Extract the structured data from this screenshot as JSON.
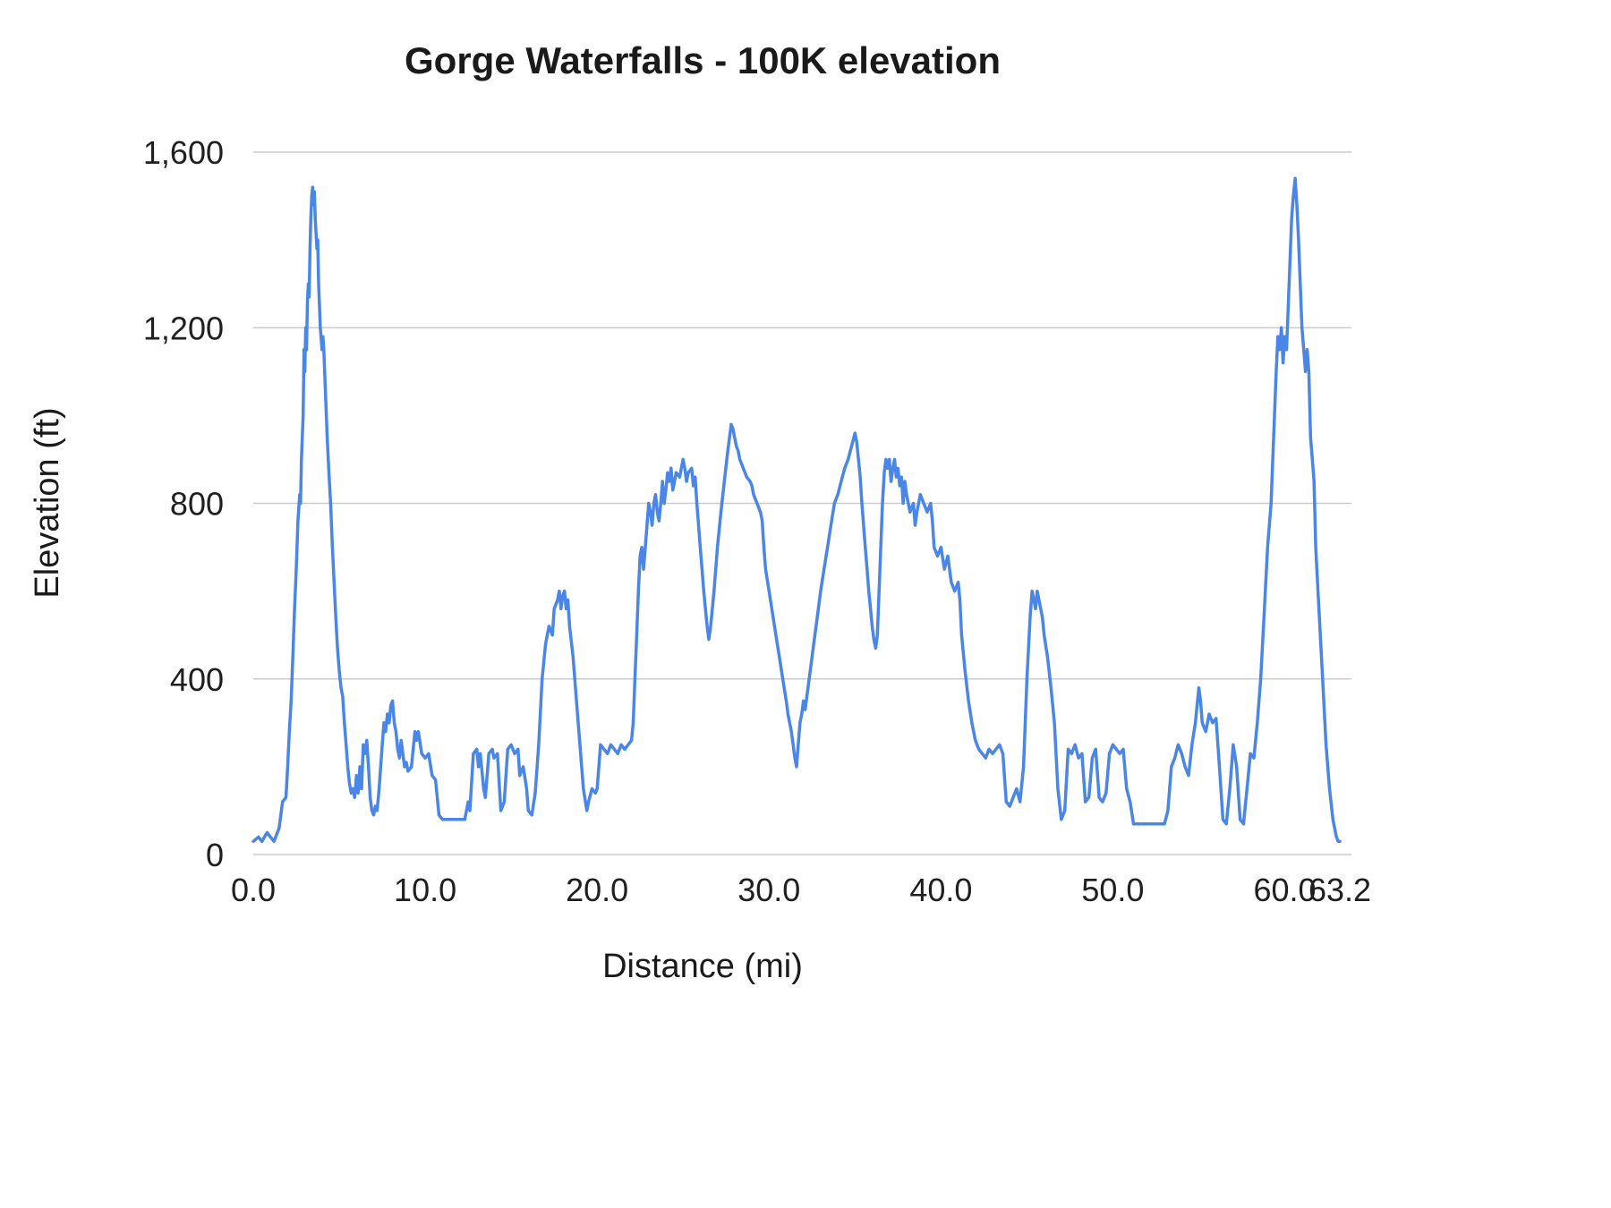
{
  "chart_data": {
    "type": "line",
    "title": "Gorge Waterfalls - 100K elevation",
    "xlabel": "Distance (mi)",
    "ylabel": "Elevation (ft)",
    "xlim": [
      0,
      63.2
    ],
    "ylim": [
      0,
      1600
    ],
    "grid": "horizontal",
    "legend": "none",
    "line_color": "#4a86e8",
    "grid_color": "#cccccc",
    "x_ticks": [
      {
        "v": 0.0,
        "label": "0.0"
      },
      {
        "v": 10.0,
        "label": "10.0"
      },
      {
        "v": 20.0,
        "label": "20.0"
      },
      {
        "v": 30.0,
        "label": "30.0"
      },
      {
        "v": 40.0,
        "label": "40.0"
      },
      {
        "v": 50.0,
        "label": "50.0"
      },
      {
        "v": 60.0,
        "label": "60.0"
      },
      {
        "v": 63.2,
        "label": "63.2"
      }
    ],
    "y_ticks": [
      {
        "v": 0,
        "label": "0"
      },
      {
        "v": 400,
        "label": "400"
      },
      {
        "v": 800,
        "label": "800"
      },
      {
        "v": 1200,
        "label": "1,200"
      },
      {
        "v": 1600,
        "label": "1,600"
      }
    ],
    "points": [
      [
        0.0,
        30
      ],
      [
        0.3,
        40
      ],
      [
        0.5,
        30
      ],
      [
        0.8,
        50
      ],
      [
        1.0,
        40
      ],
      [
        1.2,
        30
      ],
      [
        1.5,
        60
      ],
      [
        1.7,
        120
      ],
      [
        1.9,
        130
      ],
      [
        2.0,
        200
      ],
      [
        2.1,
        280
      ],
      [
        2.2,
        350
      ],
      [
        2.3,
        450
      ],
      [
        2.4,
        560
      ],
      [
        2.5,
        650
      ],
      [
        2.6,
        760
      ],
      [
        2.7,
        820
      ],
      [
        2.75,
        800
      ],
      [
        2.8,
        900
      ],
      [
        2.9,
        1000
      ],
      [
        2.95,
        1150
      ],
      [
        3.0,
        1100
      ],
      [
        3.05,
        1200
      ],
      [
        3.1,
        1150
      ],
      [
        3.15,
        1260
      ],
      [
        3.2,
        1300
      ],
      [
        3.25,
        1270
      ],
      [
        3.3,
        1380
      ],
      [
        3.35,
        1450
      ],
      [
        3.4,
        1500
      ],
      [
        3.45,
        1520
      ],
      [
        3.5,
        1480
      ],
      [
        3.55,
        1510
      ],
      [
        3.6,
        1450
      ],
      [
        3.7,
        1380
      ],
      [
        3.75,
        1400
      ],
      [
        3.8,
        1300
      ],
      [
        3.9,
        1200
      ],
      [
        4.0,
        1150
      ],
      [
        4.05,
        1180
      ],
      [
        4.1,
        1150
      ],
      [
        4.2,
        1050
      ],
      [
        4.3,
        950
      ],
      [
        4.4,
        870
      ],
      [
        4.5,
        800
      ],
      [
        4.6,
        700
      ],
      [
        4.7,
        620
      ],
      [
        4.8,
        540
      ],
      [
        4.9,
        470
      ],
      [
        5.0,
        420
      ],
      [
        5.1,
        380
      ],
      [
        5.2,
        360
      ],
      [
        5.3,
        300
      ],
      [
        5.4,
        250
      ],
      [
        5.5,
        200
      ],
      [
        5.6,
        160
      ],
      [
        5.7,
        140
      ],
      [
        5.8,
        150
      ],
      [
        5.9,
        130
      ],
      [
        6.0,
        180
      ],
      [
        6.1,
        140
      ],
      [
        6.2,
        200
      ],
      [
        6.3,
        150
      ],
      [
        6.4,
        250
      ],
      [
        6.5,
        230
      ],
      [
        6.6,
        260
      ],
      [
        6.7,
        200
      ],
      [
        6.8,
        130
      ],
      [
        6.9,
        100
      ],
      [
        7.0,
        90
      ],
      [
        7.1,
        110
      ],
      [
        7.2,
        100
      ],
      [
        7.3,
        140
      ],
      [
        7.5,
        250
      ],
      [
        7.6,
        300
      ],
      [
        7.7,
        280
      ],
      [
        7.8,
        320
      ],
      [
        7.9,
        300
      ],
      [
        8.0,
        340
      ],
      [
        8.1,
        350
      ],
      [
        8.2,
        300
      ],
      [
        8.3,
        280
      ],
      [
        8.4,
        240
      ],
      [
        8.5,
        220
      ],
      [
        8.6,
        260
      ],
      [
        8.7,
        230
      ],
      [
        8.8,
        200
      ],
      [
        8.9,
        210
      ],
      [
        9.0,
        190
      ],
      [
        9.2,
        200
      ],
      [
        9.4,
        280
      ],
      [
        9.5,
        260
      ],
      [
        9.6,
        280
      ],
      [
        9.8,
        230
      ],
      [
        10.0,
        220
      ],
      [
        10.2,
        230
      ],
      [
        10.4,
        180
      ],
      [
        10.6,
        170
      ],
      [
        10.8,
        90
      ],
      [
        11.0,
        80
      ],
      [
        11.5,
        80
      ],
      [
        12.0,
        80
      ],
      [
        12.3,
        80
      ],
      [
        12.5,
        120
      ],
      [
        12.6,
        100
      ],
      [
        12.8,
        230
      ],
      [
        13.0,
        240
      ],
      [
        13.1,
        200
      ],
      [
        13.2,
        230
      ],
      [
        13.4,
        150
      ],
      [
        13.5,
        130
      ],
      [
        13.7,
        230
      ],
      [
        13.9,
        240
      ],
      [
        14.0,
        220
      ],
      [
        14.2,
        230
      ],
      [
        14.4,
        100
      ],
      [
        14.6,
        120
      ],
      [
        14.8,
        240
      ],
      [
        15.0,
        250
      ],
      [
        15.2,
        230
      ],
      [
        15.4,
        240
      ],
      [
        15.5,
        180
      ],
      [
        15.7,
        200
      ],
      [
        15.9,
        150
      ],
      [
        16.0,
        100
      ],
      [
        16.2,
        90
      ],
      [
        16.4,
        140
      ],
      [
        16.6,
        250
      ],
      [
        16.8,
        400
      ],
      [
        17.0,
        480
      ],
      [
        17.2,
        520
      ],
      [
        17.4,
        500
      ],
      [
        17.5,
        560
      ],
      [
        17.7,
        580
      ],
      [
        17.8,
        600
      ],
      [
        17.9,
        560
      ],
      [
        18.0,
        590
      ],
      [
        18.1,
        600
      ],
      [
        18.2,
        560
      ],
      [
        18.3,
        580
      ],
      [
        18.4,
        520
      ],
      [
        18.6,
        450
      ],
      [
        18.8,
        350
      ],
      [
        19.0,
        250
      ],
      [
        19.2,
        150
      ],
      [
        19.4,
        100
      ],
      [
        19.5,
        120
      ],
      [
        19.7,
        150
      ],
      [
        19.9,
        140
      ],
      [
        20.0,
        150
      ],
      [
        20.2,
        250
      ],
      [
        20.4,
        240
      ],
      [
        20.6,
        230
      ],
      [
        20.8,
        250
      ],
      [
        21.0,
        240
      ],
      [
        21.2,
        230
      ],
      [
        21.4,
        250
      ],
      [
        21.6,
        240
      ],
      [
        21.8,
        250
      ],
      [
        22.0,
        260
      ],
      [
        22.1,
        300
      ],
      [
        22.2,
        400
      ],
      [
        22.3,
        500
      ],
      [
        22.4,
        600
      ],
      [
        22.5,
        680
      ],
      [
        22.6,
        700
      ],
      [
        22.7,
        650
      ],
      [
        22.8,
        700
      ],
      [
        22.9,
        750
      ],
      [
        23.0,
        800
      ],
      [
        23.1,
        780
      ],
      [
        23.2,
        750
      ],
      [
        23.3,
        800
      ],
      [
        23.4,
        820
      ],
      [
        23.5,
        780
      ],
      [
        23.6,
        760
      ],
      [
        23.7,
        800
      ],
      [
        23.8,
        850
      ],
      [
        23.9,
        800
      ],
      [
        24.0,
        830
      ],
      [
        24.1,
        870
      ],
      [
        24.2,
        850
      ],
      [
        24.3,
        880
      ],
      [
        24.4,
        830
      ],
      [
        24.5,
        850
      ],
      [
        24.6,
        870
      ],
      [
        24.8,
        860
      ],
      [
        25.0,
        900
      ],
      [
        25.1,
        880
      ],
      [
        25.2,
        850
      ],
      [
        25.3,
        870
      ],
      [
        25.5,
        880
      ],
      [
        25.6,
        840
      ],
      [
        25.7,
        860
      ],
      [
        25.8,
        800
      ],
      [
        25.9,
        750
      ],
      [
        26.0,
        700
      ],
      [
        26.1,
        650
      ],
      [
        26.2,
        600
      ],
      [
        26.3,
        560
      ],
      [
        26.4,
        520
      ],
      [
        26.5,
        490
      ],
      [
        26.6,
        520
      ],
      [
        26.7,
        560
      ],
      [
        26.8,
        600
      ],
      [
        26.9,
        650
      ],
      [
        27.0,
        700
      ],
      [
        27.2,
        780
      ],
      [
        27.4,
        850
      ],
      [
        27.6,
        920
      ],
      [
        27.8,
        980
      ],
      [
        27.9,
        970
      ],
      [
        28.0,
        950
      ],
      [
        28.1,
        930
      ],
      [
        28.2,
        920
      ],
      [
        28.3,
        900
      ],
      [
        28.5,
        880
      ],
      [
        28.7,
        860
      ],
      [
        28.9,
        850
      ],
      [
        29.0,
        840
      ],
      [
        29.1,
        820
      ],
      [
        29.3,
        800
      ],
      [
        29.5,
        780
      ],
      [
        29.6,
        760
      ],
      [
        29.7,
        700
      ],
      [
        29.8,
        650
      ],
      [
        30.0,
        600
      ],
      [
        30.2,
        550
      ],
      [
        30.4,
        500
      ],
      [
        30.6,
        450
      ],
      [
        30.8,
        400
      ],
      [
        31.0,
        350
      ],
      [
        31.1,
        320
      ],
      [
        31.2,
        300
      ],
      [
        31.3,
        280
      ],
      [
        31.4,
        250
      ],
      [
        31.5,
        220
      ],
      [
        31.6,
        200
      ],
      [
        31.7,
        250
      ],
      [
        31.8,
        300
      ],
      [
        31.9,
        320
      ],
      [
        32.0,
        350
      ],
      [
        32.1,
        330
      ],
      [
        32.2,
        360
      ],
      [
        32.4,
        420
      ],
      [
        32.6,
        480
      ],
      [
        32.8,
        540
      ],
      [
        33.0,
        600
      ],
      [
        33.2,
        650
      ],
      [
        33.4,
        700
      ],
      [
        33.6,
        750
      ],
      [
        33.8,
        800
      ],
      [
        34.0,
        820
      ],
      [
        34.2,
        850
      ],
      [
        34.4,
        880
      ],
      [
        34.6,
        900
      ],
      [
        34.8,
        930
      ],
      [
        35.0,
        960
      ],
      [
        35.1,
        940
      ],
      [
        35.2,
        900
      ],
      [
        35.3,
        860
      ],
      [
        35.4,
        800
      ],
      [
        35.5,
        750
      ],
      [
        35.6,
        700
      ],
      [
        35.7,
        650
      ],
      [
        35.8,
        600
      ],
      [
        35.9,
        560
      ],
      [
        36.0,
        520
      ],
      [
        36.1,
        490
      ],
      [
        36.2,
        470
      ],
      [
        36.3,
        500
      ],
      [
        36.4,
        600
      ],
      [
        36.5,
        700
      ],
      [
        36.6,
        800
      ],
      [
        36.7,
        870
      ],
      [
        36.8,
        900
      ],
      [
        36.9,
        880
      ],
      [
        37.0,
        900
      ],
      [
        37.1,
        850
      ],
      [
        37.2,
        880
      ],
      [
        37.3,
        900
      ],
      [
        37.4,
        860
      ],
      [
        37.5,
        880
      ],
      [
        37.6,
        840
      ],
      [
        37.7,
        860
      ],
      [
        37.8,
        800
      ],
      [
        37.9,
        850
      ],
      [
        38.0,
        820
      ],
      [
        38.2,
        780
      ],
      [
        38.4,
        800
      ],
      [
        38.5,
        750
      ],
      [
        38.6,
        780
      ],
      [
        38.8,
        820
      ],
      [
        39.0,
        800
      ],
      [
        39.2,
        780
      ],
      [
        39.4,
        800
      ],
      [
        39.5,
        760
      ],
      [
        39.6,
        700
      ],
      [
        39.8,
        680
      ],
      [
        40.0,
        700
      ],
      [
        40.2,
        650
      ],
      [
        40.4,
        680
      ],
      [
        40.6,
        620
      ],
      [
        40.8,
        600
      ],
      [
        41.0,
        620
      ],
      [
        41.1,
        580
      ],
      [
        41.2,
        500
      ],
      [
        41.4,
        420
      ],
      [
        41.6,
        350
      ],
      [
        41.8,
        300
      ],
      [
        42.0,
        260
      ],
      [
        42.2,
        240
      ],
      [
        42.4,
        230
      ],
      [
        42.6,
        220
      ],
      [
        42.8,
        240
      ],
      [
        43.0,
        230
      ],
      [
        43.2,
        240
      ],
      [
        43.4,
        250
      ],
      [
        43.6,
        230
      ],
      [
        43.8,
        120
      ],
      [
        44.0,
        110
      ],
      [
        44.2,
        130
      ],
      [
        44.4,
        150
      ],
      [
        44.6,
        120
      ],
      [
        44.8,
        200
      ],
      [
        45.0,
        400
      ],
      [
        45.2,
        550
      ],
      [
        45.3,
        600
      ],
      [
        45.4,
        580
      ],
      [
        45.5,
        560
      ],
      [
        45.6,
        600
      ],
      [
        45.7,
        580
      ],
      [
        45.8,
        560
      ],
      [
        45.9,
        540
      ],
      [
        46.0,
        500
      ],
      [
        46.2,
        450
      ],
      [
        46.4,
        380
      ],
      [
        46.6,
        300
      ],
      [
        46.8,
        150
      ],
      [
        47.0,
        80
      ],
      [
        47.2,
        100
      ],
      [
        47.4,
        240
      ],
      [
        47.6,
        230
      ],
      [
        47.8,
        250
      ],
      [
        48.0,
        220
      ],
      [
        48.2,
        230
      ],
      [
        48.4,
        120
      ],
      [
        48.6,
        130
      ],
      [
        48.8,
        220
      ],
      [
        49.0,
        240
      ],
      [
        49.2,
        130
      ],
      [
        49.4,
        120
      ],
      [
        49.6,
        140
      ],
      [
        49.8,
        230
      ],
      [
        50.0,
        250
      ],
      [
        50.2,
        240
      ],
      [
        50.4,
        230
      ],
      [
        50.6,
        240
      ],
      [
        50.8,
        150
      ],
      [
        51.0,
        120
      ],
      [
        51.2,
        70
      ],
      [
        51.5,
        70
      ],
      [
        52.0,
        70
      ],
      [
        52.5,
        70
      ],
      [
        53.0,
        70
      ],
      [
        53.2,
        100
      ],
      [
        53.4,
        200
      ],
      [
        53.6,
        220
      ],
      [
        53.8,
        250
      ],
      [
        54.0,
        230
      ],
      [
        54.2,
        200
      ],
      [
        54.4,
        180
      ],
      [
        54.6,
        250
      ],
      [
        54.8,
        300
      ],
      [
        55.0,
        380
      ],
      [
        55.1,
        350
      ],
      [
        55.2,
        300
      ],
      [
        55.4,
        280
      ],
      [
        55.6,
        320
      ],
      [
        55.8,
        300
      ],
      [
        56.0,
        310
      ],
      [
        56.2,
        200
      ],
      [
        56.4,
        80
      ],
      [
        56.6,
        70
      ],
      [
        56.8,
        150
      ],
      [
        57.0,
        250
      ],
      [
        57.2,
        200
      ],
      [
        57.4,
        80
      ],
      [
        57.6,
        70
      ],
      [
        57.8,
        150
      ],
      [
        58.0,
        230
      ],
      [
        58.2,
        220
      ],
      [
        58.4,
        300
      ],
      [
        58.6,
        400
      ],
      [
        58.8,
        550
      ],
      [
        59.0,
        700
      ],
      [
        59.2,
        800
      ],
      [
        59.4,
        1000
      ],
      [
        59.5,
        1100
      ],
      [
        59.6,
        1180
      ],
      [
        59.7,
        1150
      ],
      [
        59.8,
        1200
      ],
      [
        59.9,
        1120
      ],
      [
        60.0,
        1180
      ],
      [
        60.1,
        1150
      ],
      [
        60.2,
        1250
      ],
      [
        60.3,
        1350
      ],
      [
        60.4,
        1450
      ],
      [
        60.5,
        1500
      ],
      [
        60.6,
        1540
      ],
      [
        60.7,
        1480
      ],
      [
        60.8,
        1400
      ],
      [
        60.9,
        1300
      ],
      [
        61.0,
        1200
      ],
      [
        61.1,
        1150
      ],
      [
        61.2,
        1100
      ],
      [
        61.3,
        1150
      ],
      [
        61.4,
        1100
      ],
      [
        61.5,
        950
      ],
      [
        61.6,
        900
      ],
      [
        61.7,
        850
      ],
      [
        61.8,
        700
      ],
      [
        62.0,
        550
      ],
      [
        62.2,
        400
      ],
      [
        62.4,
        250
      ],
      [
        62.6,
        150
      ],
      [
        62.8,
        80
      ],
      [
        63.0,
        40
      ],
      [
        63.1,
        30
      ],
      [
        63.2,
        30
      ]
    ]
  }
}
